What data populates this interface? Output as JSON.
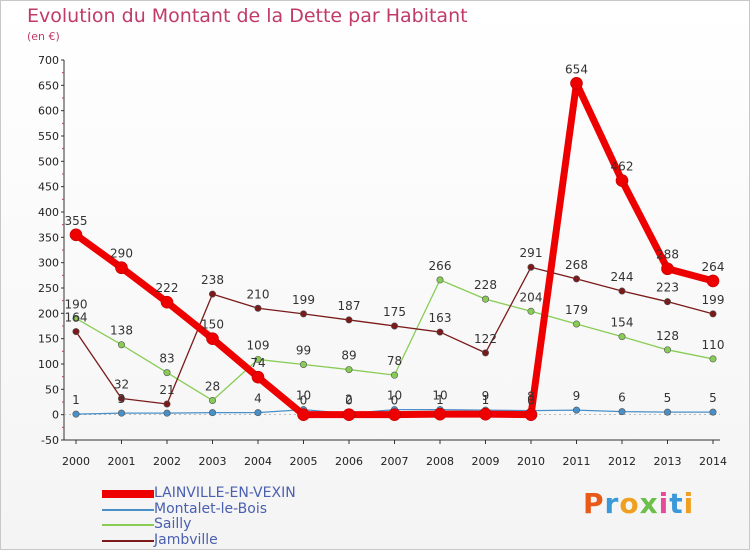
{
  "title": "Evolution du Montant de la Dette par Habitant",
  "unit": "(en €)",
  "logo": {
    "letters": [
      "P",
      "r",
      "o",
      "x",
      "i",
      "t",
      "i"
    ],
    "colors": [
      "#e85a1a",
      "#3a9ad9",
      "#f0a020",
      "#6cc04a",
      "#e84a9a",
      "#3a9ad9",
      "#f0a020"
    ]
  },
  "chart_data": {
    "type": "line",
    "x": [
      "2000",
      "2001",
      "2002",
      "2003",
      "2004",
      "2005",
      "2006",
      "2007",
      "2008",
      "2009",
      "2010",
      "2011",
      "2012",
      "2013",
      "2014"
    ],
    "ylim": [
      -50,
      700
    ],
    "yticks": [
      "-50",
      "0",
      "50",
      "100",
      "150",
      "200",
      "250",
      "300",
      "350",
      "400",
      "450",
      "500",
      "550",
      "600",
      "650",
      "700"
    ],
    "grid": false,
    "legend_position": "bottom-left",
    "series": [
      {
        "name": "LAINVILLE-EN-VEXIN",
        "color": "#ee0000",
        "values": [
          355,
          290,
          222,
          150,
          74,
          0,
          0,
          0,
          1,
          1,
          0,
          654,
          462,
          288,
          264
        ],
        "labels": [
          "355",
          "290",
          "222",
          "150",
          "74",
          "0",
          "0",
          "0",
          "1",
          "1",
          "0",
          "654",
          "462",
          "288",
          "264"
        ]
      },
      {
        "name": "Montalet-le-Bois",
        "color": "#4a90c8",
        "values": [
          1,
          3,
          3,
          4,
          4,
          10,
          2,
          10,
          10,
          9,
          8,
          9,
          6,
          5,
          5
        ],
        "labels": [
          "1",
          "3",
          "",
          "",
          "4",
          "10",
          "2",
          "10",
          "10",
          "9",
          "8",
          "9",
          "6",
          "5",
          "5"
        ]
      },
      {
        "name": "Sailly",
        "color": "#88cc55",
        "values": [
          190,
          138,
          83,
          28,
          109,
          99,
          89,
          78,
          266,
          228,
          204,
          179,
          154,
          128,
          110
        ],
        "labels": [
          "190",
          "138",
          "83",
          "28",
          "109",
          "99",
          "89",
          "78",
          "266",
          "228",
          "204",
          "179",
          "154",
          "128",
          "110"
        ]
      },
      {
        "name": "Jambville",
        "color": "#7a1a1a",
        "values": [
          164,
          32,
          21,
          238,
          210,
          199,
          187,
          175,
          163,
          122,
          291,
          268,
          244,
          223,
          199
        ],
        "labels": [
          "164",
          "32",
          "21",
          "238",
          "210",
          "199",
          "187",
          "175",
          "163",
          "122",
          "291",
          "268",
          "244",
          "223",
          "199"
        ]
      }
    ]
  }
}
